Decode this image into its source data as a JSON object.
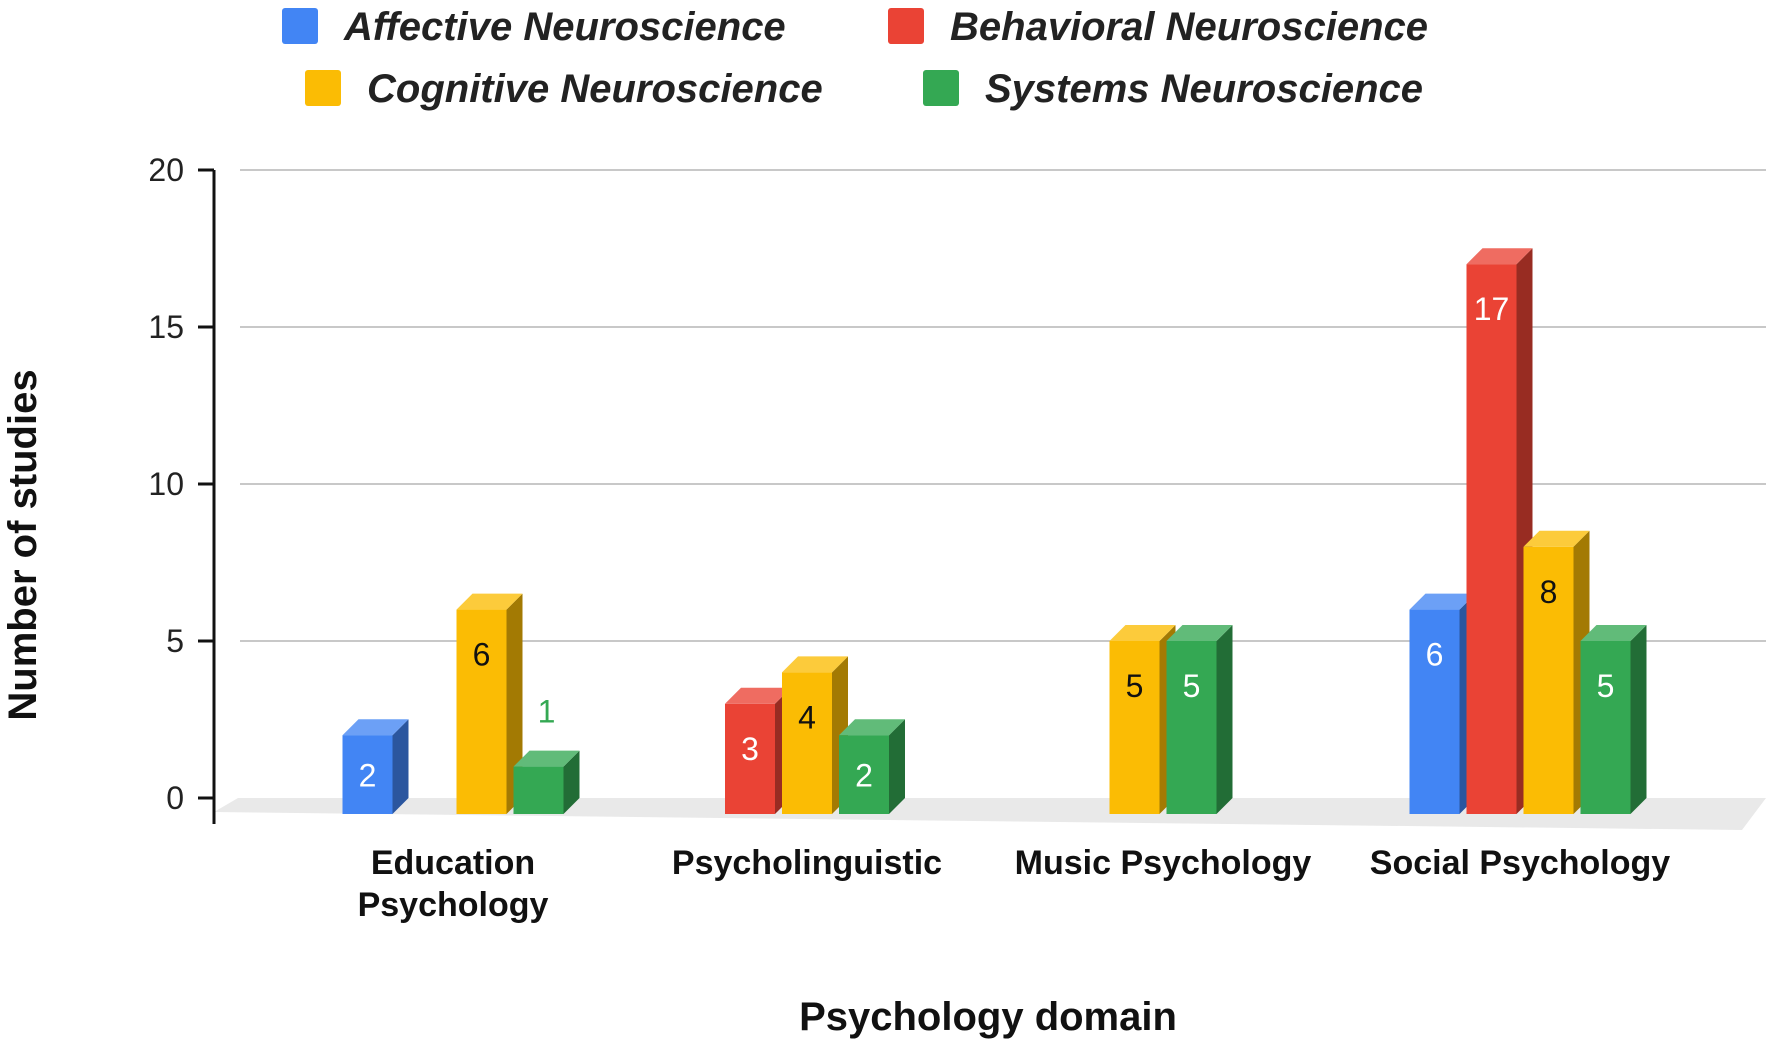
{
  "chart_data": {
    "type": "bar",
    "xlabel": "Psychology domain",
    "ylabel": "Number of studies",
    "ylim": [
      0,
      20
    ],
    "yticks": [
      0,
      5,
      10,
      15,
      20
    ],
    "grid": true,
    "legend_position": "top",
    "categories": [
      [
        "Education",
        "Psychology"
      ],
      [
        "Psycholinguistic"
      ],
      [
        "Music Psychology"
      ],
      [
        "Social Psychology"
      ]
    ],
    "series": [
      {
        "name": "Affective Neuroscience",
        "color": "#4285F4",
        "label_color": "#ffffff",
        "values": [
          2,
          0,
          0,
          6
        ]
      },
      {
        "name": "Behavioral Neuroscience",
        "color": "#EA4335",
        "label_color": "#ffffff",
        "values": [
          0,
          3,
          0,
          17
        ]
      },
      {
        "name": "Cognitive Neuroscience",
        "color": "#FBBC04",
        "label_color": "#111111",
        "values": [
          6,
          4,
          5,
          8
        ]
      },
      {
        "name": "Systems Neuroscience",
        "color": "#34A853",
        "label_color": "#ffffff",
        "values": [
          1,
          2,
          5,
          5
        ]
      }
    ]
  }
}
